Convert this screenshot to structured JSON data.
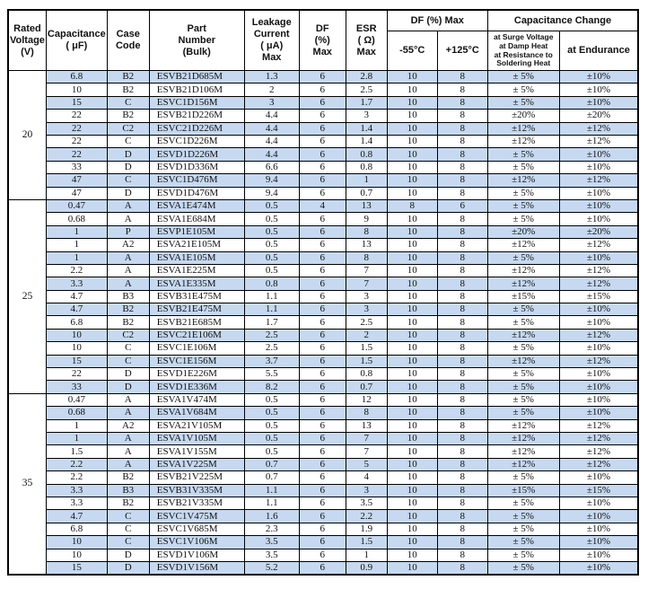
{
  "colors": {
    "row_shade": "#c6d9f1",
    "border": "#000000",
    "background": "#ffffff"
  },
  "table": {
    "header": {
      "rated_voltage": "Rated\nVoltage\n(V)",
      "capacitance": "Capacitance\n( μF)",
      "case_code": "Case\nCode",
      "part_number": "Part\nNumber\n(Bulk)",
      "leakage_current": "Leakage\nCurrent\n( μA)\nMax",
      "df": "DF\n(%)\nMax",
      "esr": "ESR\n( Ω)\nMax",
      "df_max_group": "DF (%) Max",
      "df_minus55": "-55°C",
      "df_plus125": "+125°C",
      "cap_change_group": "Capacitance Change",
      "cap_change_surge": "at Surge Voltage\nat Damp Heat\nat Resistance to\nSoldering Heat",
      "cap_change_endurance": "at Endurance"
    },
    "columns": [
      "capacitance_uF",
      "case_code",
      "part_number_bulk",
      "leakage_current_uA_max",
      "df_pct_max",
      "esr_ohm_max",
      "df_pct_max_-55C",
      "df_pct_max_+125C",
      "cap_change_surge_damp_soldering",
      "cap_change_endurance"
    ],
    "groups": [
      {
        "rated_voltage": "20",
        "rows": [
          [
            "6.8",
            "B2",
            "ESVB21D685M",
            "1.3",
            "6",
            "2.8",
            "10",
            "8",
            "± 5%",
            "±10%"
          ],
          [
            "10",
            "B2",
            "ESVB21D106M",
            "2",
            "6",
            "2.5",
            "10",
            "8",
            "± 5%",
            "±10%"
          ],
          [
            "15",
            "C",
            "ESVC1D156M",
            "3",
            "6",
            "1.7",
            "10",
            "8",
            "± 5%",
            "±10%"
          ],
          [
            "22",
            "B2",
            "ESVB21D226M",
            "4.4",
            "6",
            "3",
            "10",
            "8",
            "±20%",
            "±20%"
          ],
          [
            "22",
            "C2",
            "ESVC21D226M",
            "4.4",
            "6",
            "1.4",
            "10",
            "8",
            "±12%",
            "±12%"
          ],
          [
            "22",
            "C",
            "ESVC1D226M",
            "4.4",
            "6",
            "1.4",
            "10",
            "8",
            "±12%",
            "±12%"
          ],
          [
            "22",
            "D",
            "ESVD1D226M",
            "4.4",
            "6",
            "0.8",
            "10",
            "8",
            "± 5%",
            "±10%"
          ],
          [
            "33",
            "D",
            "ESVD1D336M",
            "6.6",
            "6",
            "0.8",
            "10",
            "8",
            "± 5%",
            "±10%"
          ],
          [
            "47",
            "C",
            "ESVC1D476M",
            "9.4",
            "6",
            "1",
            "10",
            "8",
            "±12%",
            "±12%"
          ],
          [
            "47",
            "D",
            "ESVD1D476M",
            "9.4",
            "6",
            "0.7",
            "10",
            "8",
            "± 5%",
            "±10%"
          ]
        ]
      },
      {
        "rated_voltage": "25",
        "rows": [
          [
            "0.47",
            "A",
            "ESVA1E474M",
            "0.5",
            "4",
            "13",
            "8",
            "6",
            "± 5%",
            "±10%"
          ],
          [
            "0.68",
            "A",
            "ESVA1E684M",
            "0.5",
            "6",
            "9",
            "10",
            "8",
            "± 5%",
            "±10%"
          ],
          [
            "1",
            "P",
            "ESVP1E105M",
            "0.5",
            "6",
            "8",
            "10",
            "8",
            "±20%",
            "±20%"
          ],
          [
            "1",
            "A2",
            "ESVA21E105M",
            "0.5",
            "6",
            "13",
            "10",
            "8",
            "±12%",
            "±12%"
          ],
          [
            "1",
            "A",
            "ESVA1E105M",
            "0.5",
            "6",
            "8",
            "10",
            "8",
            "± 5%",
            "±10%"
          ],
          [
            "2.2",
            "A",
            "ESVA1E225M",
            "0.5",
            "6",
            "7",
            "10",
            "8",
            "±12%",
            "±12%"
          ],
          [
            "3.3",
            "A",
            "ESVA1E335M",
            "0.8",
            "6",
            "7",
            "10",
            "8",
            "±12%",
            "±12%"
          ],
          [
            "4.7",
            "B3",
            "ESVB31E475M",
            "1.1",
            "6",
            "3",
            "10",
            "8",
            "±15%",
            "±15%"
          ],
          [
            "4.7",
            "B2",
            "ESVB21E475M",
            "1.1",
            "6",
            "3",
            "10",
            "8",
            "± 5%",
            "±10%"
          ],
          [
            "6.8",
            "B2",
            "ESVB21E685M",
            "1.7",
            "6",
            "2.5",
            "10",
            "8",
            "± 5%",
            "±10%"
          ],
          [
            "10",
            "C2",
            "ESVC21E106M",
            "2.5",
            "6",
            "2",
            "10",
            "8",
            "±12%",
            "±12%"
          ],
          [
            "10",
            "C",
            "ESVC1E106M",
            "2.5",
            "6",
            "1.5",
            "10",
            "8",
            "± 5%",
            "±10%"
          ],
          [
            "15",
            "C",
            "ESVC1E156M",
            "3.7",
            "6",
            "1.5",
            "10",
            "8",
            "±12%",
            "±12%"
          ],
          [
            "22",
            "D",
            "ESVD1E226M",
            "5.5",
            "6",
            "0.8",
            "10",
            "8",
            "± 5%",
            "±10%"
          ],
          [
            "33",
            "D",
            "ESVD1E336M",
            "8.2",
            "6",
            "0.7",
            "10",
            "8",
            "± 5%",
            "±10%"
          ]
        ]
      },
      {
        "rated_voltage": "35",
        "rows": [
          [
            "0.47",
            "A",
            "ESVA1V474M",
            "0.5",
            "6",
            "12",
            "10",
            "8",
            "± 5%",
            "±10%"
          ],
          [
            "0.68",
            "A",
            "ESVA1V684M",
            "0.5",
            "6",
            "8",
            "10",
            "8",
            "± 5%",
            "±10%"
          ],
          [
            "1",
            "A2",
            "ESVA21V105M",
            "0.5",
            "6",
            "13",
            "10",
            "8",
            "±12%",
            "±12%"
          ],
          [
            "1",
            "A",
            "ESVA1V105M",
            "0.5",
            "6",
            "7",
            "10",
            "8",
            "±12%",
            "±12%"
          ],
          [
            "1.5",
            "A",
            "ESVA1V155M",
            "0.5",
            "6",
            "7",
            "10",
            "8",
            "±12%",
            "±12%"
          ],
          [
            "2.2",
            "A",
            "ESVA1V225M",
            "0.7",
            "6",
            "5",
            "10",
            "8",
            "±12%",
            "±12%"
          ],
          [
            "2.2",
            "B2",
            "ESVB21V225M",
            "0.7",
            "6",
            "4",
            "10",
            "8",
            "± 5%",
            "±10%"
          ],
          [
            "3.3",
            "B3",
            "ESVB31V335M",
            "1.1",
            "6",
            "3",
            "10",
            "8",
            "±15%",
            "±15%"
          ],
          [
            "3.3",
            "B2",
            "ESVB21V335M",
            "1.1",
            "6",
            "3.5",
            "10",
            "8",
            "± 5%",
            "±10%"
          ],
          [
            "4.7",
            "C",
            "ESVC1V475M",
            "1.6",
            "6",
            "2.2",
            "10",
            "8",
            "± 5%",
            "±10%"
          ],
          [
            "6.8",
            "C",
            "ESVC1V685M",
            "2.3",
            "6",
            "1.9",
            "10",
            "8",
            "± 5%",
            "±10%"
          ],
          [
            "10",
            "C",
            "ESVC1V106M",
            "3.5",
            "6",
            "1.5",
            "10",
            "8",
            "± 5%",
            "±10%"
          ],
          [
            "10",
            "D",
            "ESVD1V106M",
            "3.5",
            "6",
            "1",
            "10",
            "8",
            "± 5%",
            "±10%"
          ],
          [
            "15",
            "D",
            "ESVD1V156M",
            "5.2",
            "6",
            "0.9",
            "10",
            "8",
            "± 5%",
            "±10%"
          ]
        ]
      }
    ]
  }
}
